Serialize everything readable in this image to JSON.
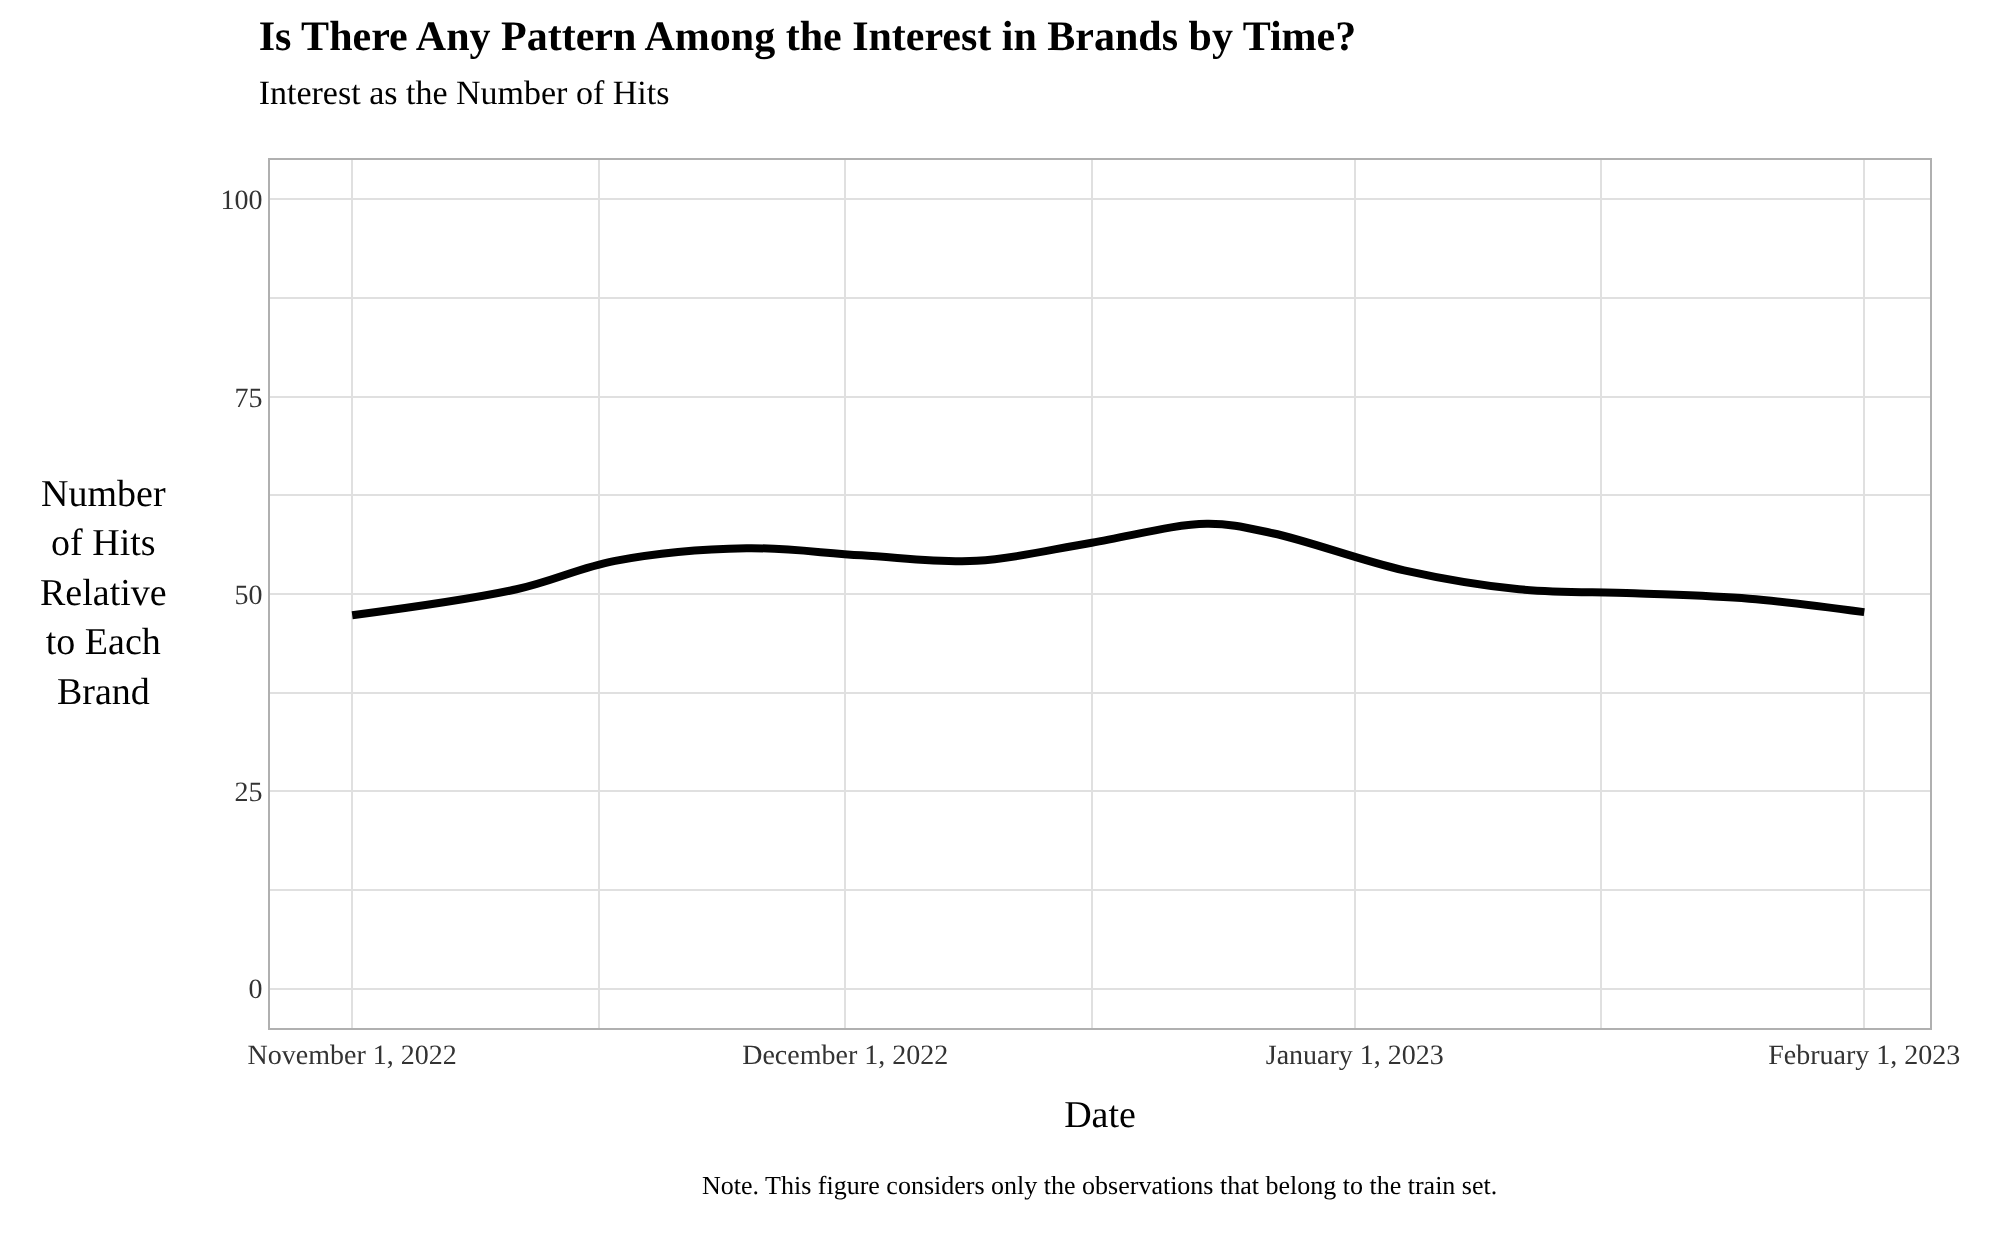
{
  "chart_data": {
    "type": "line",
    "title": "Is There Any Pattern Among the Interest in Brands by Time?",
    "subtitle": "Interest as the Number of Hits",
    "xlabel": "Date",
    "ylabel": "Number of Hits Relative to Each Brand",
    "annotations": [
      "Note. This figure considers only the observations that belong to the train set."
    ],
    "x": [
      "2022-11-01",
      "2022-11-11",
      "2022-11-17",
      "2022-11-25",
      "2022-12-02",
      "2022-12-09",
      "2022-12-16",
      "2022-12-23",
      "2022-12-27",
      "2023-01-04",
      "2023-01-11",
      "2023-01-18",
      "2023-01-25",
      "2023-02-01"
    ],
    "series": [
      {
        "color": "#000000",
        "values": [
          47.3,
          50.6,
          54.2,
          55.8,
          54.9,
          54.2,
          56.5,
          58.9,
          57.7,
          53.0,
          50.6,
          50.1,
          49.4,
          47.7
        ]
      }
    ],
    "xlim": [
      "2022-10-27",
      "2023-02-05"
    ],
    "xticks": [
      {
        "value": "2022-11-01",
        "label": "November 1, 2022"
      },
      {
        "value": "2022-11-16",
        "label": null
      },
      {
        "value": "2022-12-01",
        "label": "December 1, 2022"
      },
      {
        "value": "2022-12-16",
        "label": null
      },
      {
        "value": "2023-01-01",
        "label": "January 1, 2023"
      },
      {
        "value": "2023-01-16",
        "label": null
      },
      {
        "value": "2023-02-01",
        "label": "February 1, 2023"
      }
    ],
    "ylim": [
      -5,
      105
    ],
    "yticks": [
      0,
      {
        "value": 12.5,
        "label": null
      },
      25,
      {
        "value": 37.5,
        "label": null
      },
      50,
      {
        "value": 62.5,
        "label": null
      },
      75,
      {
        "value": 87.5,
        "label": null
      },
      100
    ],
    "grid": true,
    "line_style": "solid",
    "marker": "none"
  }
}
